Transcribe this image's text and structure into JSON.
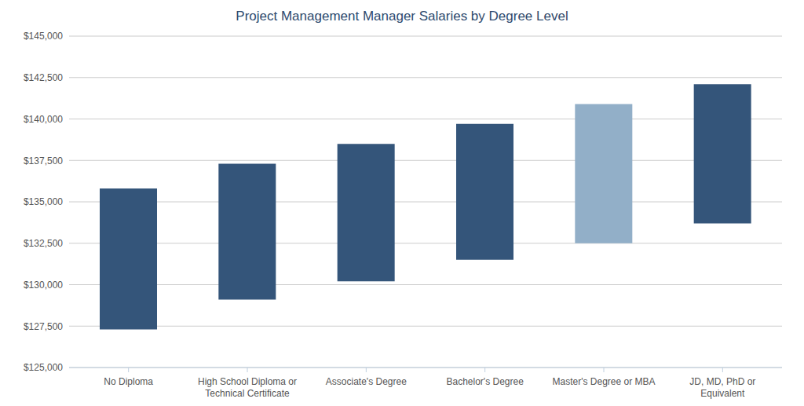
{
  "chart_data": {
    "type": "bar",
    "title": "Project Management Manager Salaries by Degree Level",
    "categories": [
      "No Diploma",
      "High School Diploma or Technical Certificate",
      "Associate's Degree",
      "Bachelor's Degree",
      "Master's Degree or MBA",
      "JD, MD, PhD or Equivalent"
    ],
    "values": [
      [
        127300,
        135800
      ],
      [
        129100,
        137300
      ],
      [
        130200,
        138500
      ],
      [
        131500,
        139700
      ],
      [
        132500,
        140900
      ],
      [
        133700,
        142100
      ]
    ],
    "colors": [
      "#34557a",
      "#34557a",
      "#34557a",
      "#34557a",
      "#92afc8",
      "#34557a"
    ],
    "ylim": [
      125000,
      145000
    ],
    "yticks": [
      {
        "value": 125000,
        "label": "$125,000"
      },
      {
        "value": 127500,
        "label": "$127,500"
      },
      {
        "value": 130000,
        "label": "$130,000"
      },
      {
        "value": 132500,
        "label": "$132,500"
      },
      {
        "value": 135000,
        "label": "$135,000"
      },
      {
        "value": 137500,
        "label": "$137,500"
      },
      {
        "value": 140000,
        "label": "$140,000"
      },
      {
        "value": 142500,
        "label": "$142,500"
      },
      {
        "value": 145000,
        "label": "$145,000"
      }
    ],
    "grid": true
  }
}
